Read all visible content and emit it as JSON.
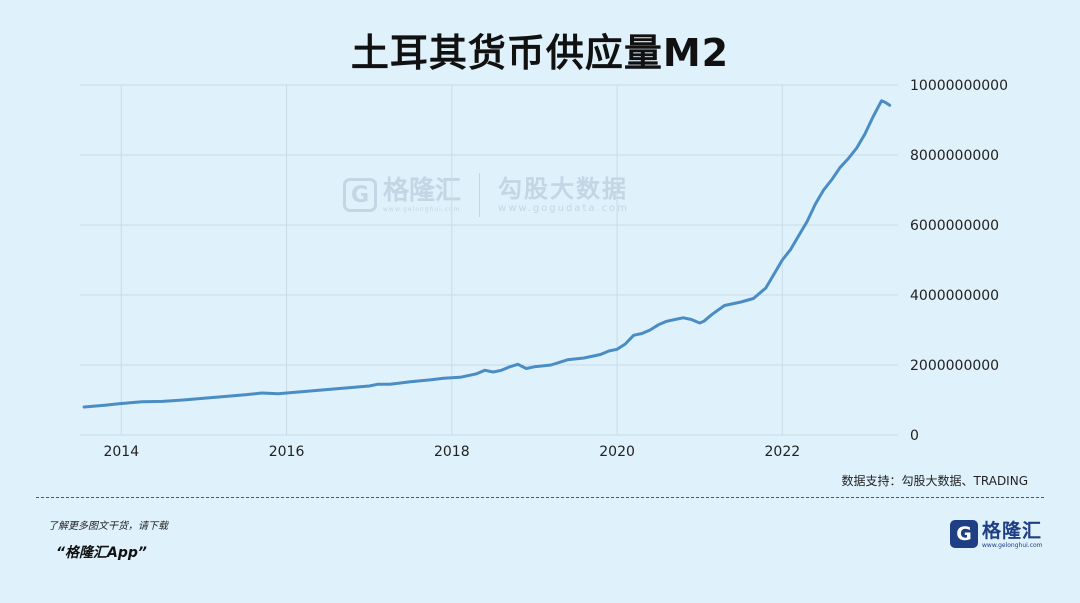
{
  "title": "土耳其货币供应量M2",
  "source_text": "数据支持：勾股大数据、TRADING",
  "promo": {
    "line1": "了解更多图文干货，请下载",
    "line2": "“格隆汇App”"
  },
  "logo": {
    "mark": "G",
    "name": "格隆汇",
    "url": "www.gelonghui.com"
  },
  "watermark": {
    "mark": "G",
    "name1": "格隆汇",
    "sub1": "www.gelonghui.com",
    "name2": "勾股大数据",
    "sub2": "www.gogudata.com"
  },
  "colors": {
    "background": "#dff1fb",
    "line": "#4a8dc4",
    "grid": "#c9dbe6"
  },
  "chart_data": {
    "type": "line",
    "title": "土耳其货币供应量M2",
    "y_axis_side": "right",
    "ylim": [
      0,
      10000000000
    ],
    "yticks": [
      0,
      2000000000,
      4000000000,
      6000000000,
      8000000000,
      10000000000
    ],
    "ytick_labels": [
      "0",
      "2000000000",
      "4000000000",
      "6000000000",
      "8000000000",
      "10000000000"
    ],
    "xlim": [
      2013.5,
      2023.4
    ],
    "xticks": [
      2014,
      2016,
      2018,
      2020,
      2022
    ],
    "xtick_labels": [
      "2014",
      "2016",
      "2018",
      "2020",
      "2022"
    ],
    "grid": true,
    "series": [
      {
        "x": [
          2013.55,
          2013.8,
          2014.0,
          2014.25,
          2014.5,
          2014.75,
          2015.0,
          2015.25,
          2015.5,
          2015.7,
          2015.9,
          2016.0,
          2016.25,
          2016.5,
          2016.75,
          2017.0,
          2017.1,
          2017.25,
          2017.5,
          2017.75,
          2017.9,
          2018.1,
          2018.3,
          2018.4,
          2018.5,
          2018.6,
          2018.7,
          2018.8,
          2018.9,
          2019.0,
          2019.2,
          2019.4,
          2019.6,
          2019.8,
          2019.9,
          2020.0,
          2020.1,
          2020.2,
          2020.3,
          2020.4,
          2020.5,
          2020.6,
          2020.7,
          2020.8,
          2020.9,
          2021.0,
          2021.05,
          2021.15,
          2021.3,
          2021.5,
          2021.65,
          2021.8,
          2021.9,
          2022.0,
          2022.1,
          2022.2,
          2022.3,
          2022.4,
          2022.5,
          2022.6,
          2022.7,
          2022.8,
          2022.9,
          2023.0,
          2023.1,
          2023.2,
          2023.25,
          2023.3
        ],
        "values": [
          800000000,
          850000000,
          900000000,
          950000000,
          960000000,
          1000000000,
          1050000000,
          1100000000,
          1150000000,
          1200000000,
          1180000000,
          1200000000,
          1250000000,
          1300000000,
          1350000000,
          1400000000,
          1450000000,
          1450000000,
          1520000000,
          1580000000,
          1620000000,
          1650000000,
          1750000000,
          1850000000,
          1800000000,
          1850000000,
          1950000000,
          2020000000,
          1900000000,
          1950000000,
          2000000000,
          2150000000,
          2200000000,
          2300000000,
          2400000000,
          2450000000,
          2600000000,
          2850000000,
          2900000000,
          3000000000,
          3150000000,
          3250000000,
          3300000000,
          3350000000,
          3300000000,
          3200000000,
          3250000000,
          3450000000,
          3700000000,
          3800000000,
          3900000000,
          4200000000,
          4600000000,
          5000000000,
          5300000000,
          5700000000,
          6100000000,
          6600000000,
          7000000000,
          7300000000,
          7650000000,
          7900000000,
          8200000000,
          8600000000,
          9100000000,
          9550000000,
          9500000000,
          9420000000
        ]
      }
    ]
  }
}
